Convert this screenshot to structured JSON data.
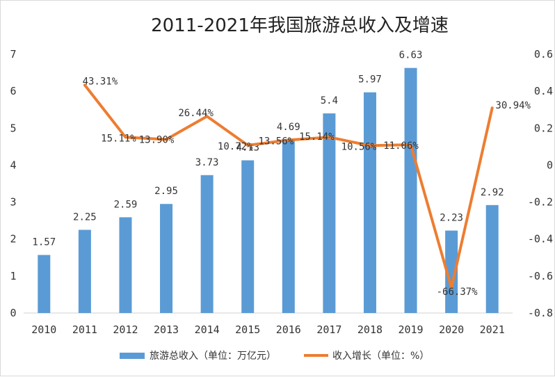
{
  "chart_data": {
    "type": "bar",
    "title": "2011-2021年我国旅游总收入及增速",
    "categories": [
      "2010",
      "2011",
      "2012",
      "2013",
      "2014",
      "2015",
      "2016",
      "2017",
      "2018",
      "2019",
      "2020",
      "2021"
    ],
    "series": [
      {
        "name": "旅游总收入（单位：万亿元）",
        "type": "bar",
        "axis": "left",
        "color": "#5b9bd5",
        "values": [
          1.57,
          2.25,
          2.59,
          2.95,
          3.73,
          4.13,
          4.69,
          5.4,
          5.97,
          6.63,
          2.23,
          2.92
        ],
        "labels": [
          "1.57",
          "2.25",
          "2.59",
          "2.95",
          "3.73",
          "4.13",
          "4.69",
          "5.4",
          "5.97",
          "6.63",
          "2.23",
          "2.92"
        ]
      },
      {
        "name": "收入增长（单位：%）",
        "type": "line",
        "axis": "right",
        "color": "#ed7d31",
        "values": [
          null,
          0.4331,
          0.1511,
          0.139,
          0.2644,
          0.1072,
          0.1356,
          0.1514,
          0.1056,
          0.1106,
          -0.6637,
          0.3094
        ],
        "labels": [
          "",
          "43.31%",
          "15.11%",
          "13.90%",
          "26.44%",
          "10.72%",
          "13.56%",
          "15.14%",
          "10.56%",
          "11.06%",
          "-66.37%",
          "30.94%"
        ]
      }
    ],
    "y_left": {
      "min": 0,
      "max": 7,
      "ticks": [
        0,
        1,
        2,
        3,
        4,
        5,
        6,
        7
      ],
      "tick_labels": [
        "0",
        "1",
        "2",
        "3",
        "4",
        "5",
        "6",
        "7"
      ]
    },
    "y_right": {
      "min": -0.8,
      "max": 0.6,
      "ticks": [
        -0.8,
        -0.6,
        -0.4,
        -0.2,
        0,
        0.2,
        0.4,
        0.6
      ],
      "tick_labels": [
        "-0.8",
        "-0.6",
        "-0.4",
        "-0.2",
        "0",
        "0.2",
        "0.4",
        "0.6"
      ]
    },
    "grid": false,
    "legend_position": "bottom"
  }
}
